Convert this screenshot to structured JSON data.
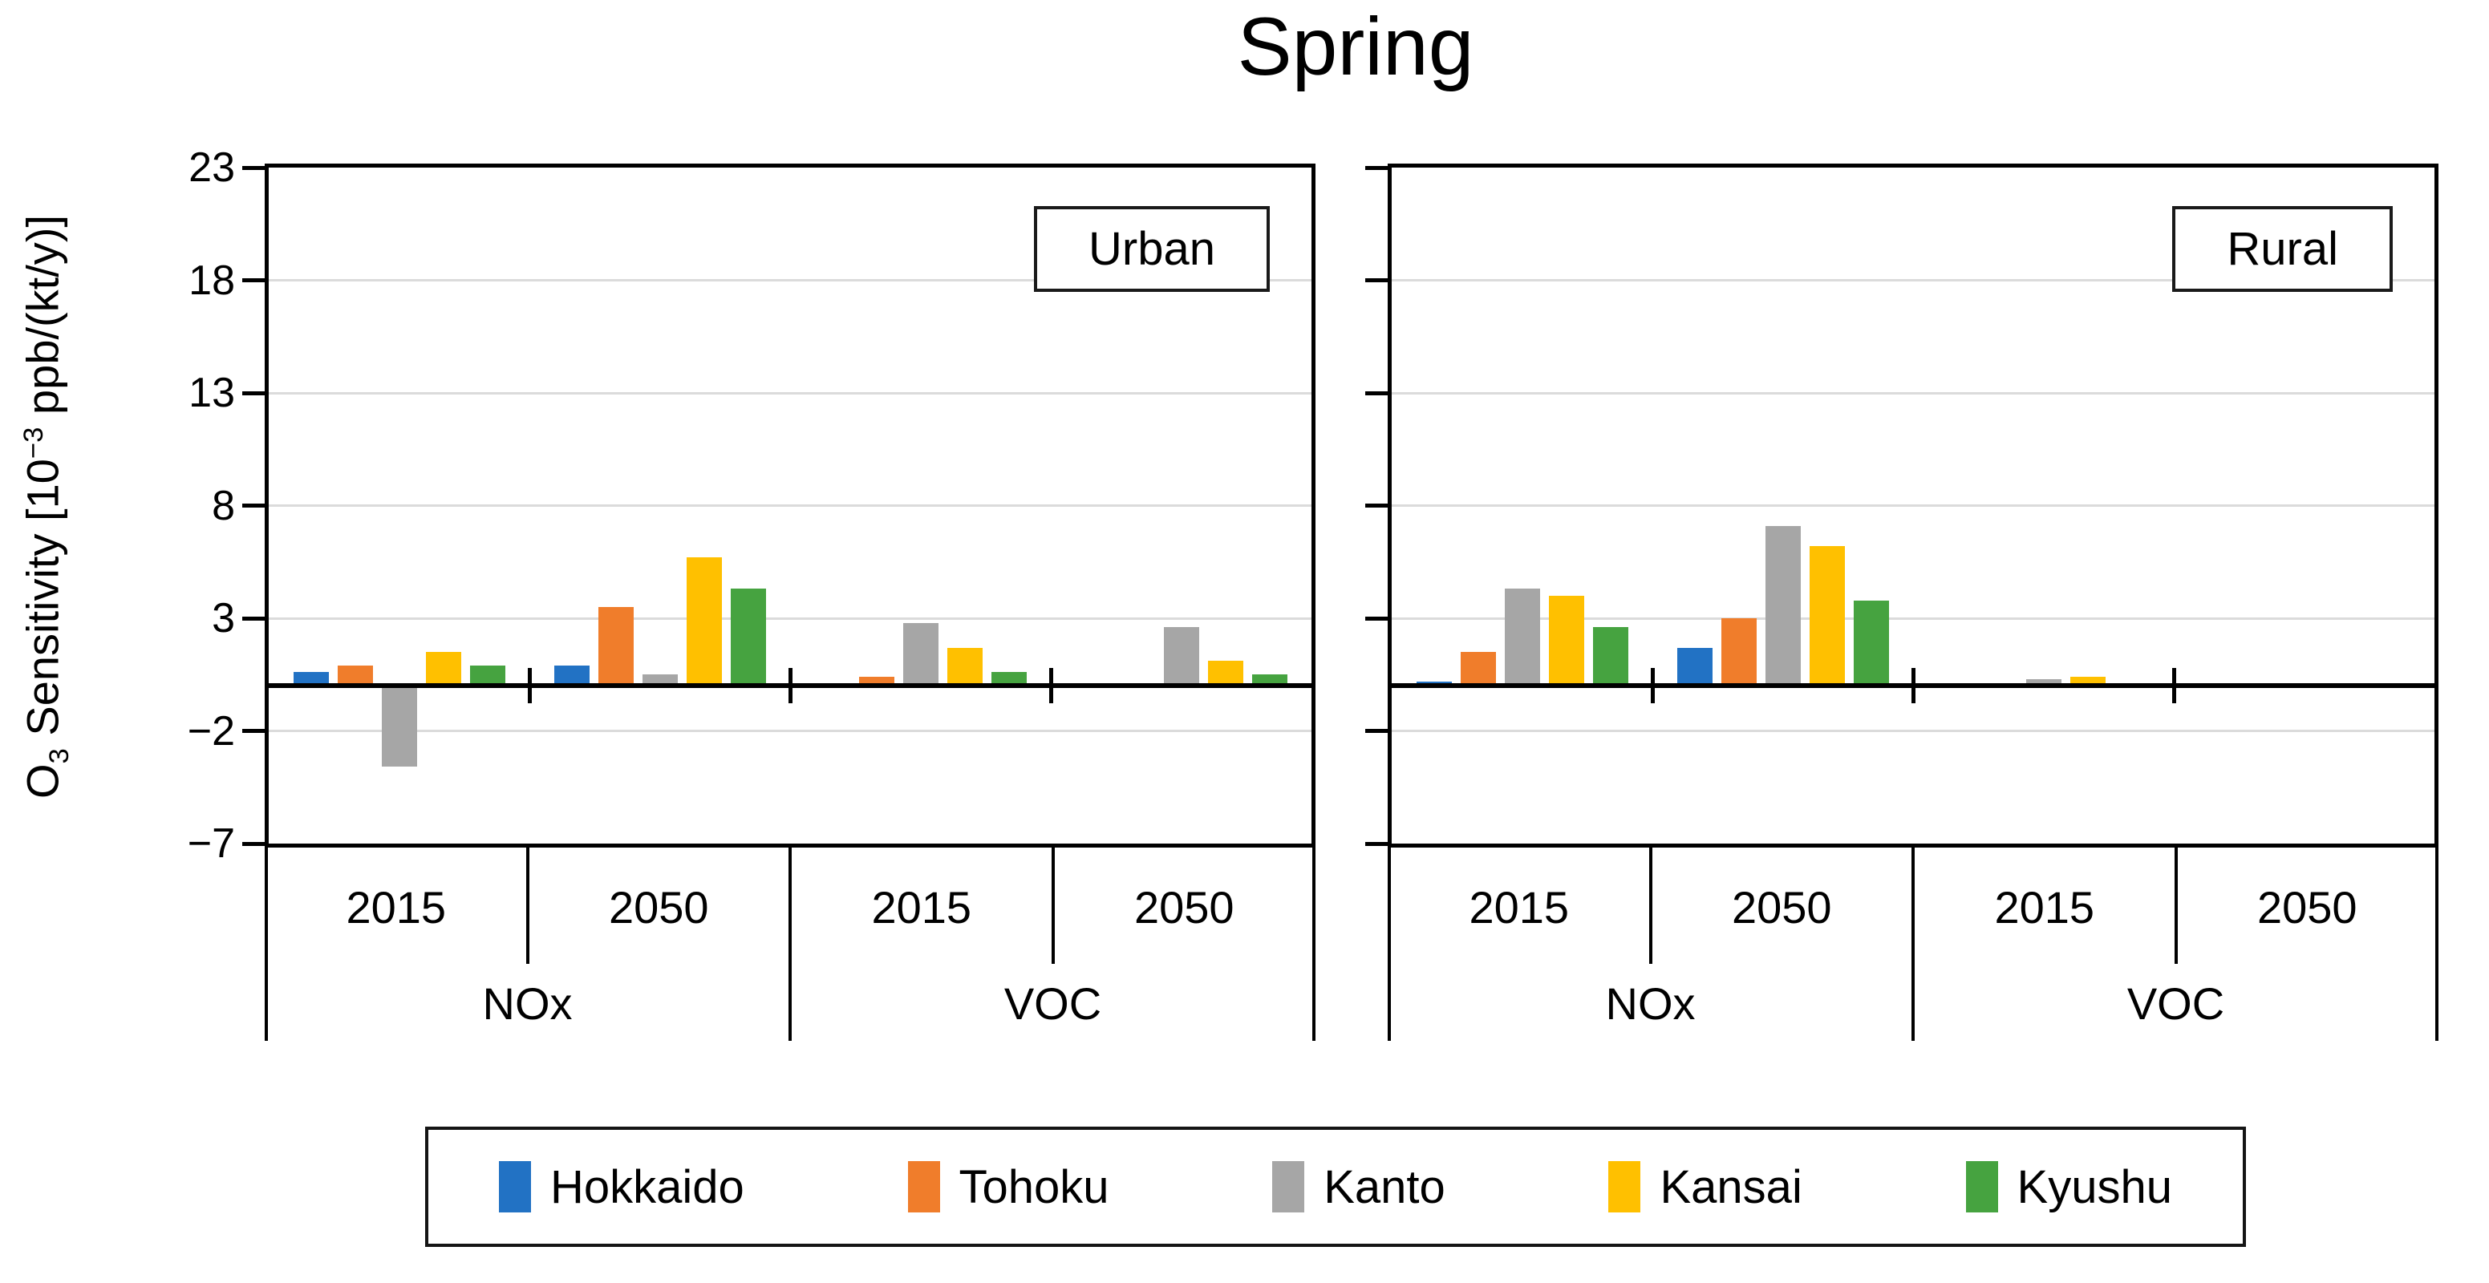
{
  "title": "Spring",
  "ylabel_parts": [
    {
      "text": "O"
    },
    {
      "sub": "3"
    },
    {
      "text": " Sensitivity [10"
    },
    {
      "sup": "−3"
    },
    {
      "text": " ppb/(kt/y)]"
    }
  ],
  "chart_data": {
    "type": "bar",
    "title": "Spring",
    "ylabel": "O3 Sensitivity [10^-3 ppb/(kt/y)]",
    "xlabel": "",
    "ylim": [
      -7,
      23
    ],
    "yticks": [
      23,
      18,
      13,
      8,
      3,
      -2,
      -7
    ],
    "gridlines": [
      18,
      13,
      8,
      3,
      -2
    ],
    "grid": true,
    "legend_position": "bottom",
    "series": [
      {
        "name": "Hokkaido",
        "color": "#2272C4"
      },
      {
        "name": "Tohoku",
        "color": "#F07D2B"
      },
      {
        "name": "Kanto",
        "color": "#A6A6A6"
      },
      {
        "name": "Kansai",
        "color": "#FFC000"
      },
      {
        "name": "Kyushu",
        "color": "#46A340"
      }
    ],
    "category_levels": {
      "years": [
        "2015",
        "2050"
      ],
      "pollutants": [
        "NOx",
        "VOC"
      ]
    },
    "panels": [
      {
        "label": "Urban",
        "groups": [
          {
            "pollutant": "NOx",
            "year": "2015",
            "values": [
              0.6,
              0.9,
              -3.6,
              1.5,
              0.9
            ]
          },
          {
            "pollutant": "NOx",
            "year": "2050",
            "values": [
              0.9,
              3.5,
              0.5,
              5.7,
              4.3
            ]
          },
          {
            "pollutant": "VOC",
            "year": "2015",
            "values": [
              0,
              0.4,
              2.8,
              1.7,
              0.6
            ]
          },
          {
            "pollutant": "VOC",
            "year": "2050",
            "values": [
              0,
              0,
              2.6,
              1.1,
              0.5
            ]
          }
        ]
      },
      {
        "label": "Rural",
        "groups": [
          {
            "pollutant": "NOx",
            "year": "2015",
            "values": [
              0.2,
              1.5,
              4.3,
              4.0,
              2.6
            ]
          },
          {
            "pollutant": "NOx",
            "year": "2050",
            "values": [
              1.7,
              3.0,
              7.1,
              6.2,
              3.8
            ]
          },
          {
            "pollutant": "VOC",
            "year": "2015",
            "values": [
              0,
              0,
              0.3,
              0.4,
              0
            ]
          },
          {
            "pollutant": "VOC",
            "year": "2050",
            "values": [
              0,
              0.05,
              0,
              0,
              0
            ]
          }
        ]
      }
    ]
  }
}
